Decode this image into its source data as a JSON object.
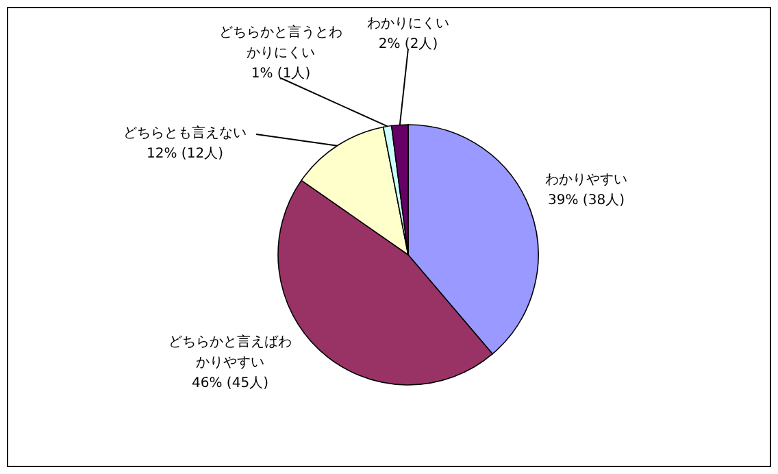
{
  "chart_data": {
    "type": "pie",
    "categories": [
      "わかりやすい",
      "どちらかと言えばわかりやすい",
      "どちらとも言えない",
      "どちらかと言うとわかりにくい",
      "わかりにくい"
    ],
    "values": [
      38,
      45,
      12,
      1,
      2
    ],
    "value_labels": [
      "39% (38人)",
      "46% (45人)",
      "12% (12人)",
      "1% (1人)",
      "2% (2人)"
    ],
    "colors": [
      "#9999ff",
      "#993366",
      "#ffffcc",
      "#ccffff",
      "#660066"
    ]
  }
}
